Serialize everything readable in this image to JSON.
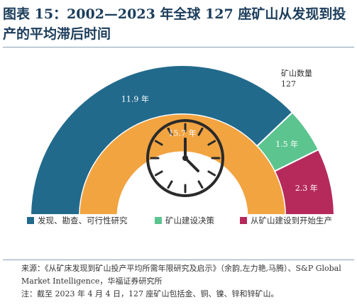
{
  "title": "图表 15：2002—2023 年全球 127 座矿山从发现到投产的平均滞后时间",
  "chart_data": {
    "type": "gauge",
    "segments": [
      {
        "label": "发现、勘查、可行性研究",
        "value": 11.9,
        "value_label": "11.9 年",
        "color": "#226a8c"
      },
      {
        "label": "矿山建设决策",
        "value": 1.5,
        "value_label": "1.5 年",
        "color": "#5cc48f"
      },
      {
        "label": "从矿山建设到开始生产",
        "value": 2.3,
        "value_label": "2.3 年",
        "color": "#b52a5b"
      }
    ],
    "total": {
      "value": 15.7,
      "label": "15.7 年",
      "color": "#f2a441"
    },
    "annotation": {
      "line1": "矿山数量",
      "line2": "127"
    }
  },
  "notes": {
    "source": "来源：《从矿床发现到矿山投产平均所需年限研究及启示》（余韵,左力艳,马腾）、S&P Global Market Intelligence，华福证券研究所",
    "note": "注：截至 2023 年 4 月 4 日，127 座矿山包括金、铜、镍、锌和锌矿山。"
  }
}
